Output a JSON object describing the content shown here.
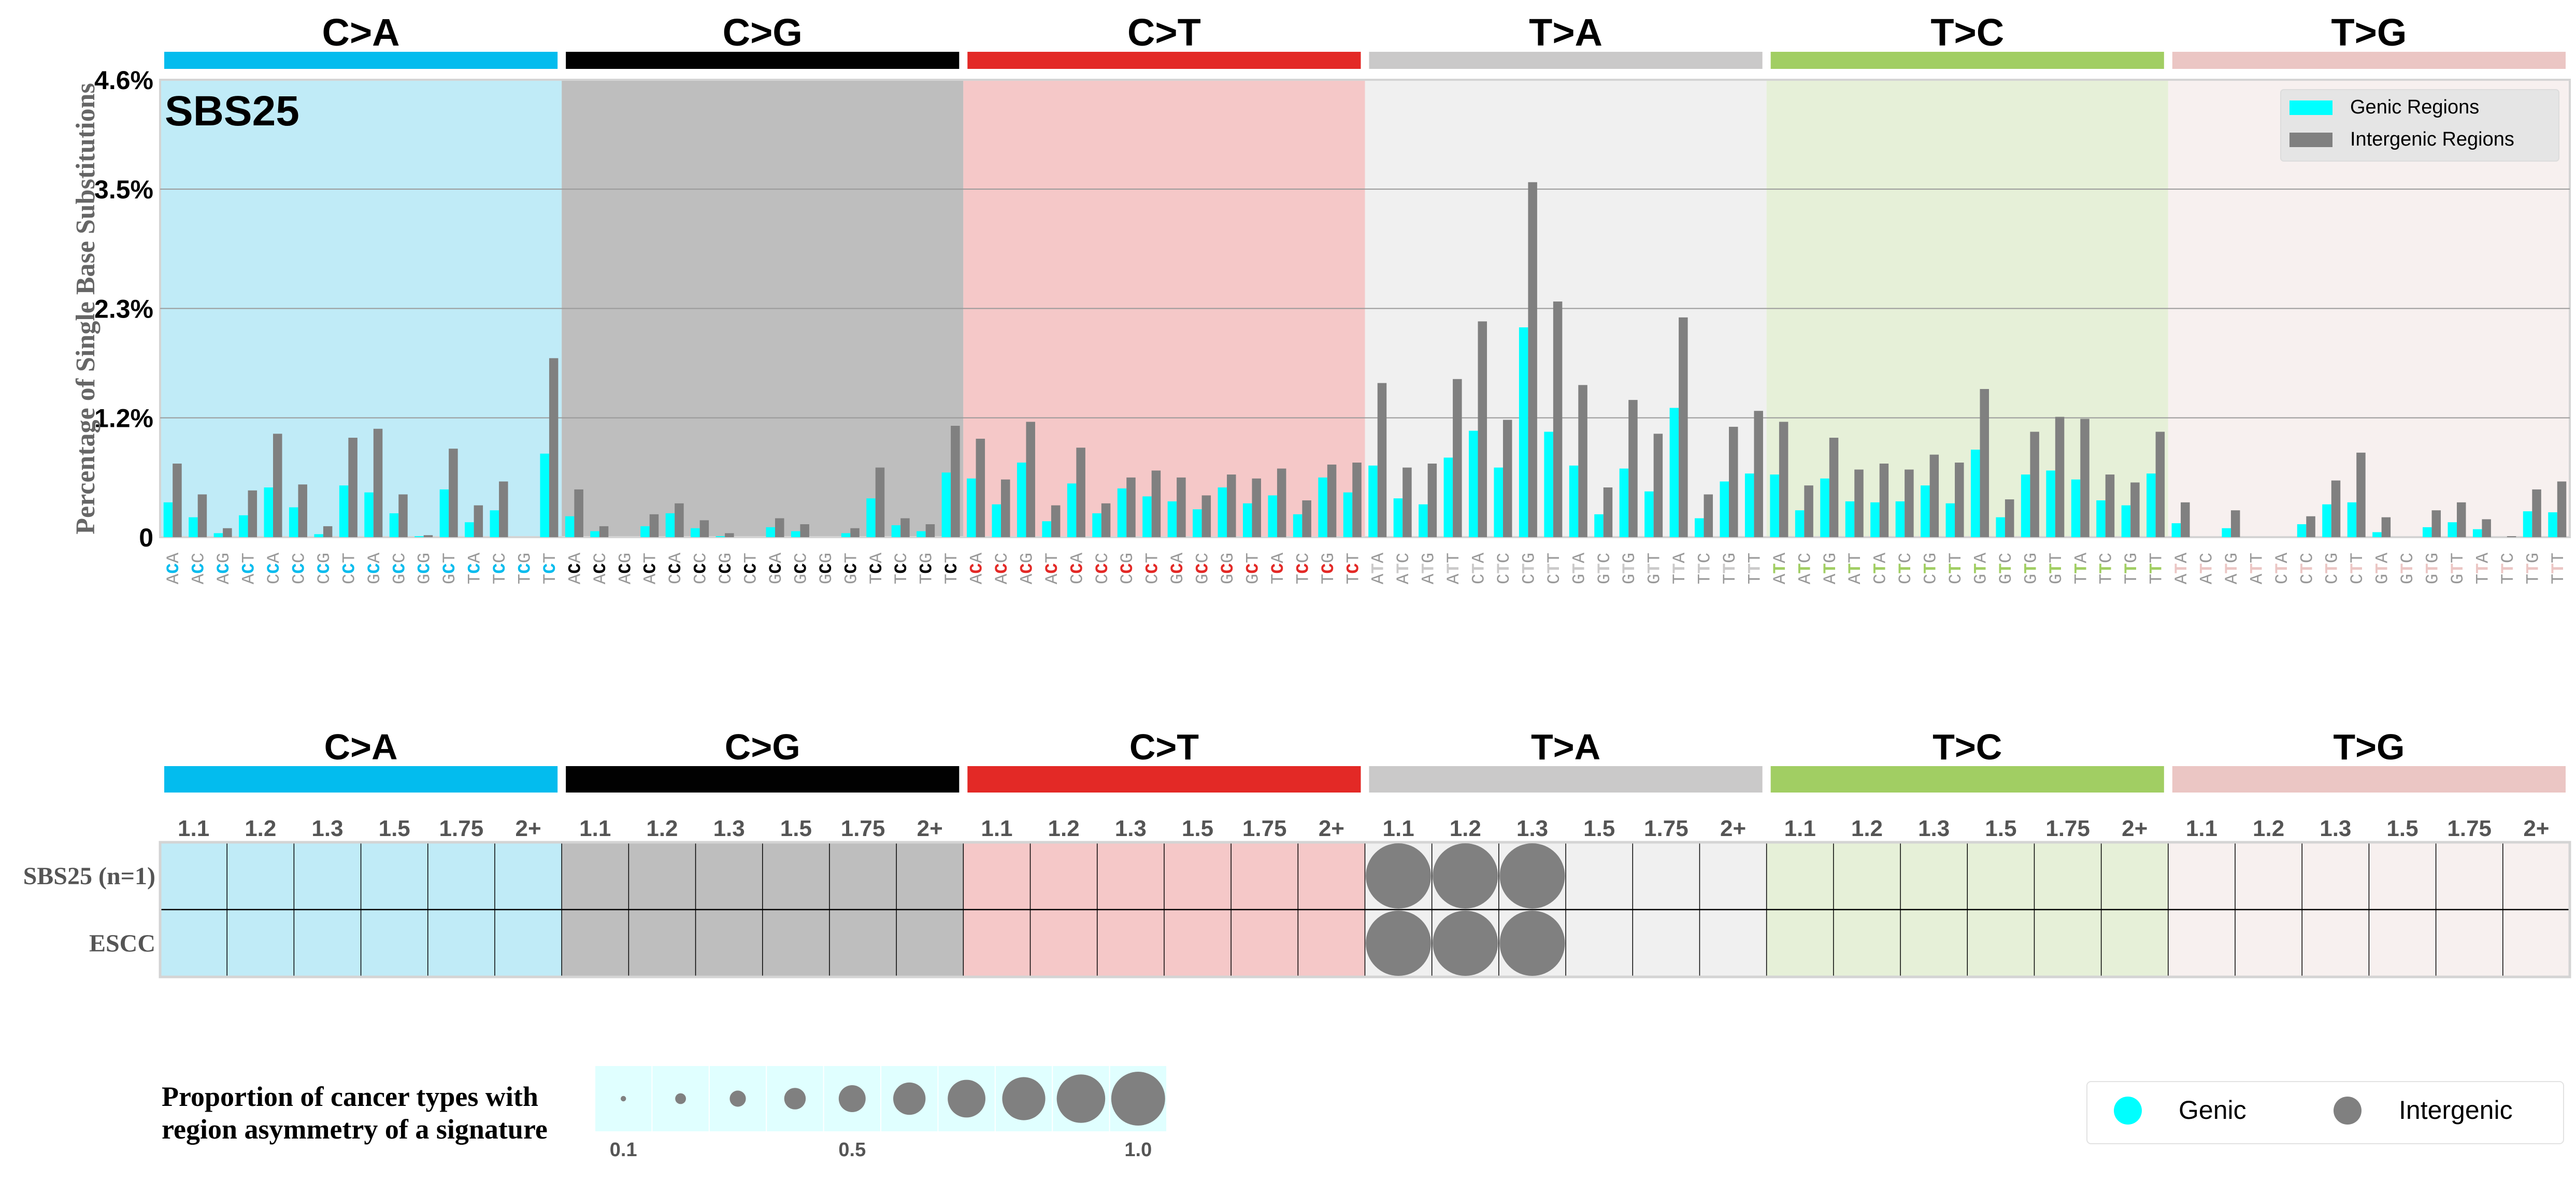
{
  "chart_data": [
    {
      "type": "bar",
      "title": "SBS25",
      "ylabel": "Percentage of Single Base Substitutions",
      "ylim": [
        0,
        4.6
      ],
      "y_ticks": [
        0,
        1.2,
        2.3,
        3.5,
        4.6
      ],
      "y_tick_labels": [
        "0",
        "1.2%",
        "2.3%",
        "3.5%",
        "4.6%"
      ],
      "grid": "horizontal",
      "legend_position": "top-right",
      "substitution_groups": [
        {
          "label": "C>A",
          "color": "#03BCEE",
          "background": "#C0EBF7"
        },
        {
          "label": "C>G",
          "color": "#010101",
          "background": "#BEBEBE"
        },
        {
          "label": "C>T",
          "color": "#E32926",
          "background": "#F5C8C8"
        },
        {
          "label": "T>A",
          "color": "#CAC9C9",
          "background": "#F0F0F0"
        },
        {
          "label": "T>C",
          "color": "#A1CE63",
          "background": "#E6F0D8"
        },
        {
          "label": "T>G",
          "color": "#EBC6C4",
          "background": "#F7F0EF"
        }
      ],
      "categories": [
        "ACA",
        "ACC",
        "ACG",
        "ACT",
        "CCA",
        "CCC",
        "CCG",
        "CCT",
        "GCA",
        "GCC",
        "GCG",
        "GCT",
        "TCA",
        "TCC",
        "TCG",
        "TCT",
        "ACA",
        "ACC",
        "ACG",
        "ACT",
        "CCA",
        "CCC",
        "CCG",
        "CCT",
        "GCA",
        "GCC",
        "GCG",
        "GCT",
        "TCA",
        "TCC",
        "TCG",
        "TCT",
        "ACA",
        "ACC",
        "ACG",
        "ACT",
        "CCA",
        "CCC",
        "CCG",
        "CCT",
        "GCA",
        "GCC",
        "GCG",
        "GCT",
        "TCA",
        "TCC",
        "TCG",
        "TCT",
        "ATA",
        "ATC",
        "ATG",
        "ATT",
        "CTA",
        "CTC",
        "CTG",
        "CTT",
        "GTA",
        "GTC",
        "GTG",
        "GTT",
        "TTA",
        "TTC",
        "TTG",
        "TTT",
        "ATA",
        "ATC",
        "ATG",
        "ATT",
        "CTA",
        "CTC",
        "CTG",
        "CTT",
        "GTA",
        "GTC",
        "GTG",
        "GTT",
        "TTA",
        "TTC",
        "TTG",
        "TTT",
        "ATA",
        "ATC",
        "ATG",
        "ATT",
        "CTA",
        "CTC",
        "CTG",
        "CTT",
        "GTA",
        "GTC",
        "GTG",
        "GTT",
        "TTA",
        "TTC",
        "TTG",
        "TTT"
      ],
      "series": [
        {
          "name": "Genic Regions",
          "color": "#00FFFF",
          "values": [
            0.35,
            0.2,
            0.04,
            0.22,
            0.5,
            0.3,
            0.03,
            0.52,
            0.45,
            0.24,
            0.01,
            0.48,
            0.15,
            0.27,
            0,
            0.84,
            0.21,
            0.06,
            0,
            0.11,
            0.24,
            0.09,
            0.01,
            0,
            0.1,
            0.06,
            0,
            0.04,
            0.39,
            0.12,
            0.06,
            0.65,
            0.59,
            0.33,
            0.75,
            0.16,
            0.54,
            0.24,
            0.49,
            0.41,
            0.36,
            0.28,
            0.5,
            0.34,
            0.42,
            0.23,
            0.6,
            0.45,
            0.72,
            0.39,
            0.33,
            0.8,
            1.07,
            0.7,
            2.11,
            1.06,
            0.72,
            0.23,
            0.69,
            0.46,
            1.3,
            0.19,
            0.56,
            0.64,
            0.63,
            0.27,
            0.59,
            0.36,
            0.35,
            0.36,
            0.52,
            0.34,
            0.88,
            0.2,
            0.63,
            0.67,
            0.58,
            0.37,
            0.32,
            0.64,
            0.14,
            0,
            0.09,
            0,
            0,
            0.13,
            0.33,
            0.35,
            0.05,
            0,
            0.1,
            0.15,
            0.08,
            0,
            0.26,
            0.25
          ]
        },
        {
          "name": "Intergenic Regions",
          "color": "#808080",
          "values": [
            0.74,
            0.43,
            0.09,
            0.47,
            1.04,
            0.53,
            0.11,
            1.0,
            1.09,
            0.43,
            0.02,
            0.89,
            0.32,
            0.56,
            0,
            1.8,
            0.48,
            0.11,
            0,
            0.23,
            0.34,
            0.17,
            0.04,
            0,
            0.19,
            0.13,
            0,
            0.09,
            0.7,
            0.19,
            0.13,
            1.12,
            0.99,
            0.58,
            1.16,
            0.32,
            0.9,
            0.34,
            0.6,
            0.67,
            0.6,
            0.42,
            0.63,
            0.59,
            0.69,
            0.37,
            0.73,
            0.75,
            1.55,
            0.7,
            0.74,
            1.59,
            2.17,
            1.18,
            3.57,
            2.37,
            1.53,
            0.5,
            1.38,
            1.04,
            2.21,
            0.43,
            1.11,
            1.27,
            1.16,
            0.52,
            1.0,
            0.68,
            0.74,
            0.68,
            0.83,
            0.75,
            1.49,
            0.38,
            1.06,
            1.21,
            1.19,
            0.63,
            0.55,
            1.06,
            0.35,
            0,
            0.27,
            0,
            0,
            0.21,
            0.57,
            0.85,
            0.2,
            0,
            0.27,
            0.35,
            0.18,
            0.01,
            0.48,
            0.56
          ]
        }
      ]
    },
    {
      "type": "scatter",
      "subtype": "bubble-grid",
      "substitution_groups": [
        "C>A",
        "C>G",
        "C>T",
        "T>A",
        "T>C",
        "T>G"
      ],
      "thresholds": [
        "1.1",
        "1.2",
        "1.3",
        "1.5",
        "1.75",
        "2+"
      ],
      "rows": [
        "SBS25 (n=1)",
        "ESCC"
      ],
      "points": [
        {
          "row": "SBS25 (n=1)",
          "substitution": "T>A",
          "threshold": "1.1",
          "region": "Intergenic",
          "proportion": 1.0
        },
        {
          "row": "SBS25 (n=1)",
          "substitution": "T>A",
          "threshold": "1.2",
          "region": "Intergenic",
          "proportion": 1.0
        },
        {
          "row": "SBS25 (n=1)",
          "substitution": "T>A",
          "threshold": "1.3",
          "region": "Intergenic",
          "proportion": 1.0
        },
        {
          "row": "ESCC",
          "substitution": "T>A",
          "threshold": "1.1",
          "region": "Intergenic",
          "proportion": 1.0
        },
        {
          "row": "ESCC",
          "substitution": "T>A",
          "threshold": "1.2",
          "region": "Intergenic",
          "proportion": 1.0
        },
        {
          "row": "ESCC",
          "substitution": "T>A",
          "threshold": "1.3",
          "region": "Intergenic",
          "proportion": 1.0
        }
      ],
      "size_legend": {
        "title_line1": "Proportion of cancer types with",
        "title_line2": "region asymmetry of a signature",
        "sizes": [
          0.1,
          0.2,
          0.3,
          0.4,
          0.5,
          0.6,
          0.7,
          0.8,
          0.9,
          1.0
        ],
        "labels": [
          "0.1",
          "0.5",
          "1.0"
        ],
        "background": "#E0FFFF"
      },
      "color_legend": [
        {
          "label": "Genic",
          "color": "#00FFFF"
        },
        {
          "label": "Intergenic",
          "color": "#808080"
        }
      ]
    }
  ]
}
